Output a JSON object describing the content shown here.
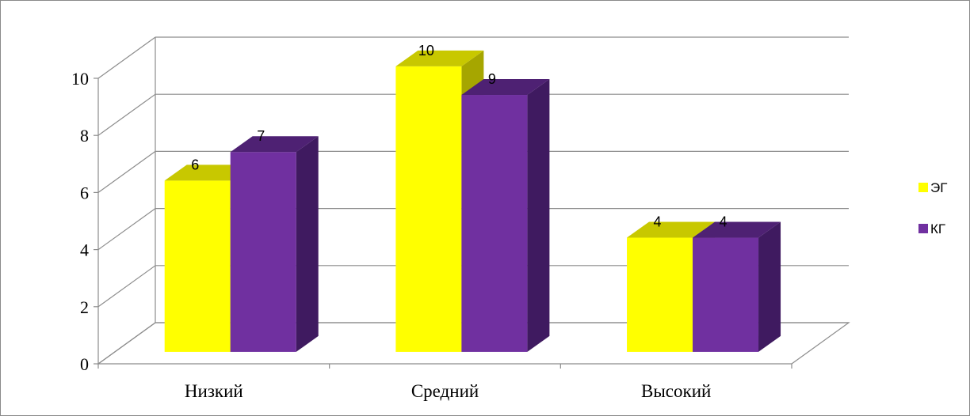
{
  "chart_data": {
    "type": "bar",
    "title": "",
    "xlabel": "",
    "ylabel": "",
    "categories": [
      "Низкий",
      "Средний",
      "Высокий"
    ],
    "series": [
      {
        "name": "ЭГ",
        "values": [
          6,
          10,
          4
        ],
        "color": "#ffff00",
        "top_color": "#c8c800",
        "side_color": "#a6a600"
      },
      {
        "name": "КГ",
        "values": [
          7,
          9,
          4
        ],
        "color": "#7030a0",
        "top_color": "#4e2173",
        "side_color": "#3f1a60"
      }
    ],
    "ylim": [
      0,
      10
    ],
    "yticks": [
      0,
      2,
      4,
      6,
      8,
      10
    ],
    "grid": true,
    "legend": "right",
    "style": "3d-column"
  }
}
